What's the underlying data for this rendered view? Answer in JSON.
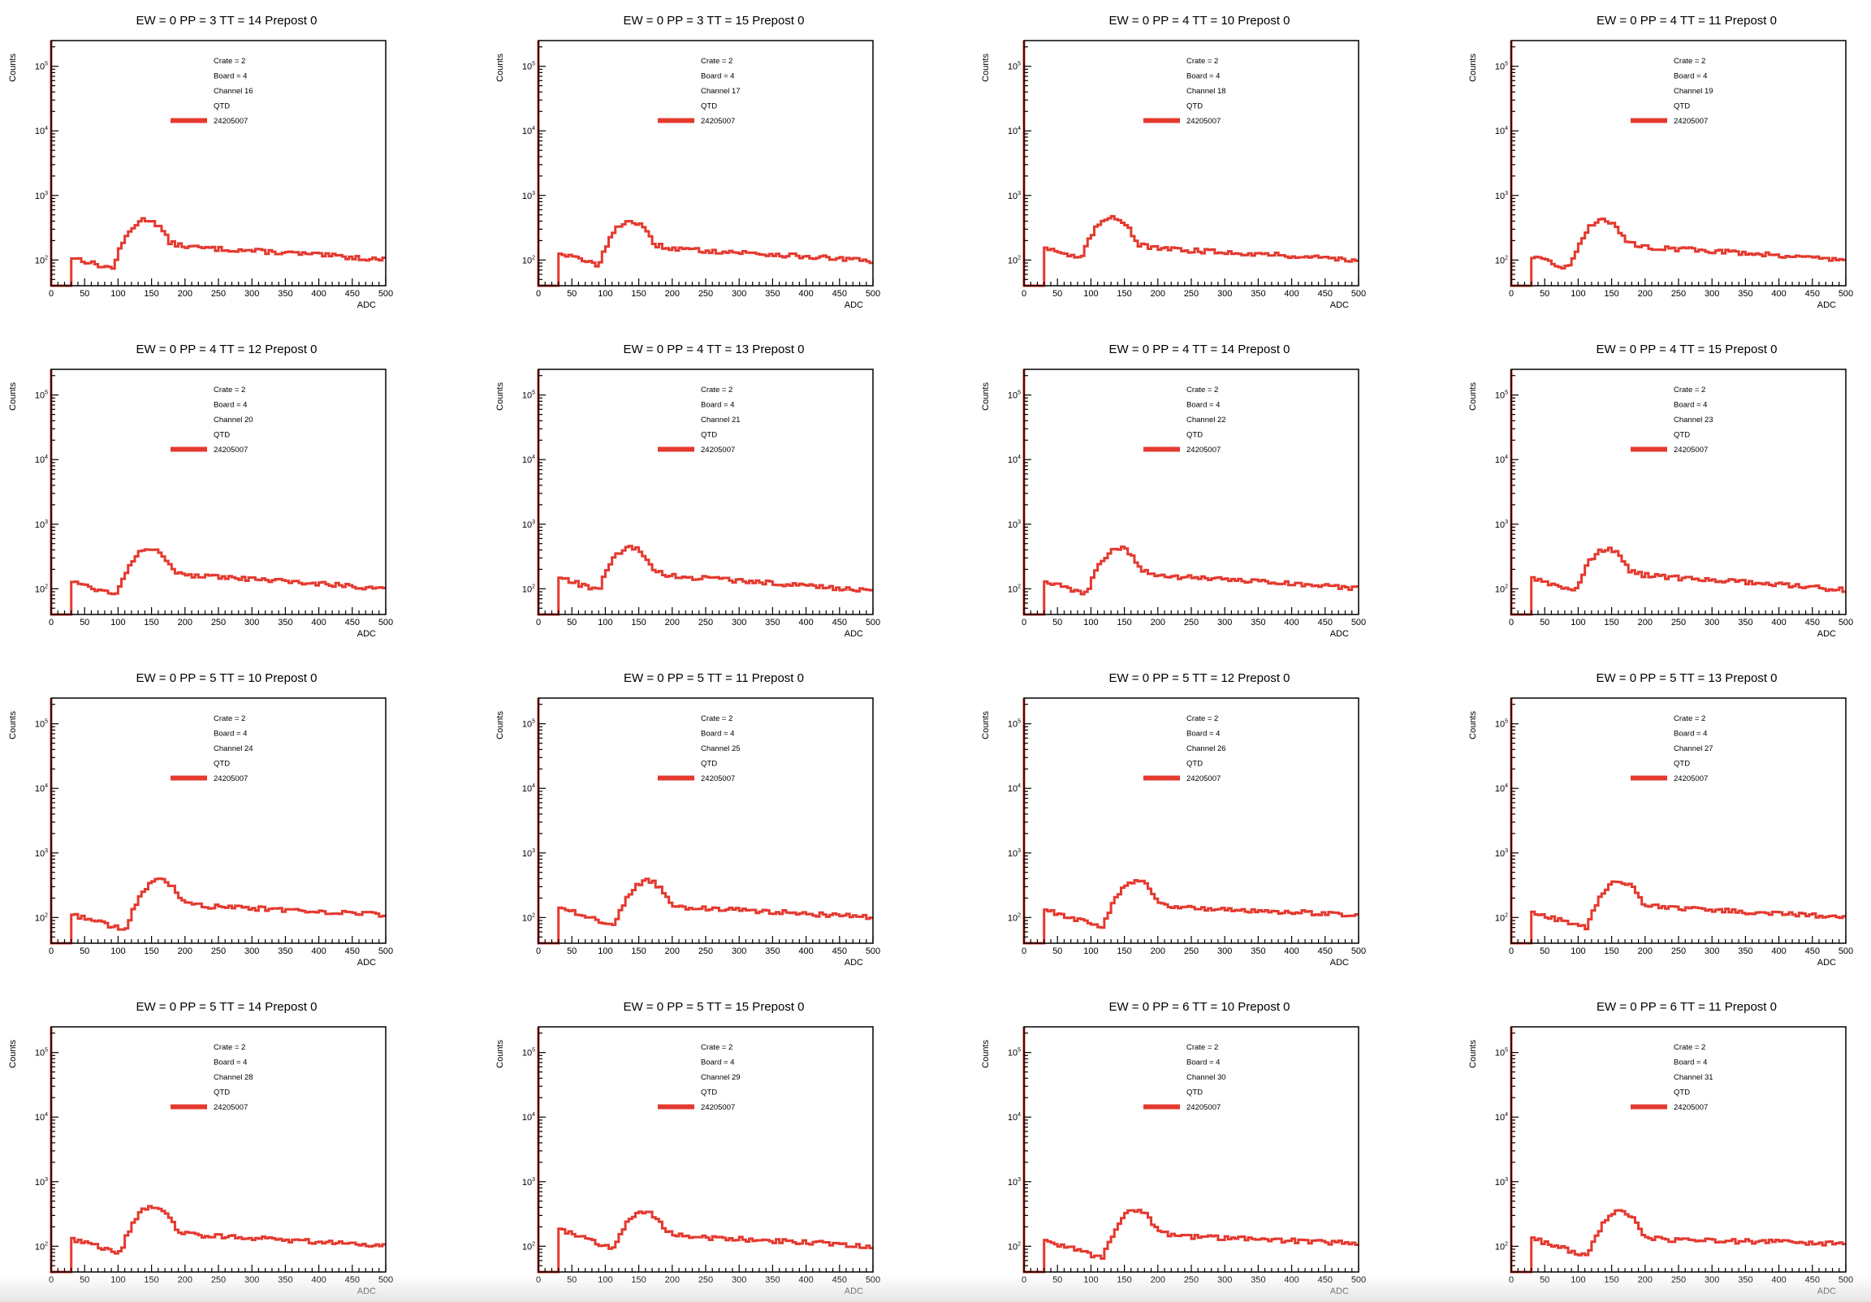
{
  "colors": {
    "hist": "#e4392f",
    "axis": "#000000",
    "background": "#ffffff"
  },
  "common": {
    "xlabel": "ADC",
    "ylabel": "Counts",
    "xticks": [
      "0",
      "50",
      "100",
      "150",
      "200",
      "250",
      "300",
      "350",
      "400",
      "450",
      "500"
    ],
    "ytick_base": "10",
    "ytick_exps": [
      "2",
      "3",
      "4",
      "5"
    ],
    "legend": [
      "Crate = 2",
      "Board = 4",
      "QTD"
    ],
    "series_label": "24205007"
  },
  "chart_data": [
    {
      "type": "line",
      "title": "EW = 0 PP = 3 TT = 14 Prepost 0",
      "channel": "Channel 16",
      "xlim": [
        0,
        500
      ],
      "ylim": [
        40,
        250000
      ],
      "yscale": "log",
      "series": [
        {
          "name": "24205007",
          "peak_x": 140,
          "peak_y": 370,
          "plateau_y": 170,
          "end_y": 100,
          "edge_y": 110
        }
      ]
    },
    {
      "type": "line",
      "title": "EW = 0 PP = 3 TT = 15 Prepost 0",
      "channel": "Channel 17",
      "xlim": [
        0,
        500
      ],
      "ylim": [
        40,
        250000
      ],
      "yscale": "log",
      "series": [
        {
          "name": "24205007",
          "peak_x": 135,
          "peak_y": 350,
          "plateau_y": 160,
          "end_y": 95,
          "edge_y": 130
        }
      ]
    },
    {
      "type": "line",
      "title": "EW = 0 PP = 4 TT = 10 Prepost 0",
      "channel": "Channel 18",
      "xlim": [
        0,
        500
      ],
      "ylim": [
        40,
        250000
      ],
      "yscale": "log",
      "series": [
        {
          "name": "24205007",
          "peak_x": 130,
          "peak_y": 410,
          "plateau_y": 160,
          "end_y": 100,
          "edge_y": 160
        }
      ]
    },
    {
      "type": "line",
      "title": "EW = 0 PP = 4 TT = 11 Prepost 0",
      "channel": "Channel 19",
      "xlim": [
        0,
        500
      ],
      "ylim": [
        40,
        250000
      ],
      "yscale": "log",
      "series": [
        {
          "name": "24205007",
          "peak_x": 135,
          "peak_y": 370,
          "plateau_y": 170,
          "end_y": 100,
          "edge_y": 110
        }
      ]
    },
    {
      "type": "line",
      "title": "EW = 0 PP = 4 TT = 12 Prepost 0",
      "channel": "Channel 20",
      "xlim": [
        0,
        500
      ],
      "ylim": [
        40,
        250000
      ],
      "yscale": "log",
      "series": [
        {
          "name": "24205007",
          "peak_x": 145,
          "peak_y": 380,
          "plateau_y": 170,
          "end_y": 100,
          "edge_y": 130
        }
      ]
    },
    {
      "type": "line",
      "title": "EW = 0 PP = 4 TT = 13 Prepost 0",
      "channel": "Channel 21",
      "xlim": [
        0,
        500
      ],
      "ylim": [
        40,
        250000
      ],
      "yscale": "log",
      "series": [
        {
          "name": "24205007",
          "peak_x": 135,
          "peak_y": 380,
          "plateau_y": 170,
          "end_y": 90,
          "edge_y": 150
        }
      ]
    },
    {
      "type": "line",
      "title": "EW = 0 PP = 4 TT = 14 Prepost 0",
      "channel": "Channel 22",
      "xlim": [
        0,
        500
      ],
      "ylim": [
        40,
        250000
      ],
      "yscale": "log",
      "series": [
        {
          "name": "24205007",
          "peak_x": 140,
          "peak_y": 370,
          "plateau_y": 170,
          "end_y": 100,
          "edge_y": 130
        }
      ]
    },
    {
      "type": "line",
      "title": "EW = 0 PP = 4 TT = 15 Prepost 0",
      "channel": "Channel 23",
      "xlim": [
        0,
        500
      ],
      "ylim": [
        40,
        250000
      ],
      "yscale": "log",
      "series": [
        {
          "name": "24205007",
          "peak_x": 140,
          "peak_y": 360,
          "plateau_y": 170,
          "end_y": 95,
          "edge_y": 150
        }
      ]
    },
    {
      "type": "line",
      "title": "EW = 0 PP = 5 TT = 10 Prepost 0",
      "channel": "Channel 24",
      "xlim": [
        0,
        500
      ],
      "ylim": [
        40,
        250000
      ],
      "yscale": "log",
      "series": [
        {
          "name": "24205007",
          "peak_x": 160,
          "peak_y": 330,
          "plateau_y": 160,
          "end_y": 110,
          "edge_y": 110
        }
      ]
    },
    {
      "type": "line",
      "title": "EW = 0 PP = 5 TT = 11 Prepost 0",
      "channel": "Channel 25",
      "xlim": [
        0,
        500
      ],
      "ylim": [
        40,
        250000
      ],
      "yscale": "log",
      "series": [
        {
          "name": "24205007",
          "peak_x": 160,
          "peak_y": 320,
          "plateau_y": 150,
          "end_y": 100,
          "edge_y": 140
        }
      ]
    },
    {
      "type": "line",
      "title": "EW = 0 PP = 5 TT = 12 Prepost 0",
      "channel": "Channel 26",
      "xlim": [
        0,
        500
      ],
      "ylim": [
        40,
        250000
      ],
      "yscale": "log",
      "series": [
        {
          "name": "24205007",
          "peak_x": 165,
          "peak_y": 320,
          "plateau_y": 150,
          "end_y": 110,
          "edge_y": 130
        }
      ]
    },
    {
      "type": "line",
      "title": "EW = 0 PP = 5 TT = 13 Prepost 0",
      "channel": "Channel 27",
      "xlim": [
        0,
        500
      ],
      "ylim": [
        40,
        250000
      ],
      "yscale": "log",
      "series": [
        {
          "name": "24205007",
          "peak_x": 160,
          "peak_y": 320,
          "plateau_y": 150,
          "end_y": 100,
          "edge_y": 120
        }
      ]
    },
    {
      "type": "line",
      "title": "EW = 0 PP = 5 TT = 14 Prepost 0",
      "channel": "Channel 28",
      "xlim": [
        0,
        500
      ],
      "ylim": [
        40,
        250000
      ],
      "yscale": "log",
      "series": [
        {
          "name": "24205007",
          "peak_x": 150,
          "peak_y": 360,
          "plateau_y": 160,
          "end_y": 100,
          "edge_y": 130
        }
      ]
    },
    {
      "type": "line",
      "title": "EW = 0 PP = 5 TT = 15 Prepost 0",
      "channel": "Channel 29",
      "xlim": [
        0,
        500
      ],
      "ylim": [
        40,
        250000
      ],
      "yscale": "log",
      "series": [
        {
          "name": "24205007",
          "peak_x": 155,
          "peak_y": 300,
          "plateau_y": 150,
          "end_y": 100,
          "edge_y": 180
        }
      ]
    },
    {
      "type": "line",
      "title": "EW = 0 PP = 6 TT = 10 Prepost 0",
      "channel": "Channel 30",
      "xlim": [
        0,
        500
      ],
      "ylim": [
        40,
        250000
      ],
      "yscale": "log",
      "series": [
        {
          "name": "24205007",
          "peak_x": 165,
          "peak_y": 310,
          "plateau_y": 150,
          "end_y": 110,
          "edge_y": 120
        }
      ]
    },
    {
      "type": "line",
      "title": "EW = 0 PP = 6 TT = 11 Prepost 0",
      "channel": "Channel 31",
      "xlim": [
        0,
        500
      ],
      "ylim": [
        40,
        250000
      ],
      "yscale": "log",
      "series": [
        {
          "name": "24205007",
          "peak_x": 160,
          "peak_y": 300,
          "plateau_y": 130,
          "end_y": 110,
          "edge_y": 130
        }
      ]
    }
  ]
}
